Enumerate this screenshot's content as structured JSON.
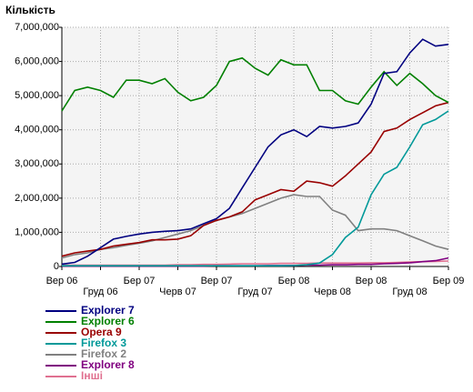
{
  "chart_data": {
    "type": "line",
    "title": "Кількість",
    "categories": [
      "Вер 06",
      null,
      null,
      "Груд 06",
      null,
      null,
      "Бер 07",
      null,
      null,
      "Черв 07",
      null,
      null,
      "Вер 07",
      null,
      null,
      "Груд 07",
      null,
      null,
      "Бер 08",
      null,
      null,
      "Черв 08",
      null,
      null,
      "Вер 08",
      null,
      null,
      "Груд 08",
      null,
      null,
      "Бер 09"
    ],
    "ylim": [
      0,
      7000000
    ],
    "yticks": [
      0,
      {
        "value": 1000000,
        "label": "1,000,000"
      },
      {
        "value": 2000000,
        "label": "2,000,000"
      },
      {
        "value": 3000000,
        "label": "3,000,000"
      },
      {
        "value": 4000000,
        "label": "4,000,000"
      },
      {
        "value": 5000000,
        "label": "5,000,000"
      },
      {
        "value": 6000000,
        "label": "6,000,000"
      },
      {
        "value": 7000000,
        "label": "7,000,000"
      }
    ],
    "grid": true,
    "series": [
      {
        "name": "Explorer 7",
        "color": "#000080",
        "values": [
          70000,
          120000,
          300000,
          550000,
          800000,
          880000,
          950000,
          1000000,
          1030000,
          1050000,
          1100000,
          1250000,
          1400000,
          1700000,
          2300000,
          2900000,
          3500000,
          3850000,
          4000000,
          3800000,
          4100000,
          4050000,
          4100000,
          4200000,
          4750000,
          5650000,
          5700000,
          6250000,
          6650000,
          6450000,
          6500000
        ]
      },
      {
        "name": "Explorer 6",
        "color": "#008000",
        "values": [
          4550000,
          5150000,
          5250000,
          5150000,
          4950000,
          5450000,
          5450000,
          5350000,
          5500000,
          5100000,
          4850000,
          4950000,
          5300000,
          6000000,
          6100000,
          5800000,
          5600000,
          6050000,
          5900000,
          5900000,
          5150000,
          5150000,
          4850000,
          4750000,
          5250000,
          5700000,
          5300000,
          5650000,
          5350000,
          5000000,
          4800000
        ]
      },
      {
        "name": "Opera 9",
        "color": "#990000",
        "values": [
          300000,
          400000,
          450000,
          500000,
          600000,
          650000,
          700000,
          780000,
          780000,
          800000,
          900000,
          1200000,
          1350000,
          1450000,
          1600000,
          1950000,
          2100000,
          2250000,
          2200000,
          2500000,
          2450000,
          2350000,
          2650000,
          3000000,
          3350000,
          3950000,
          4050000,
          4300000,
          4500000,
          4700000,
          4800000
        ]
      },
      {
        "name": "Firefox 3",
        "color": "#009999",
        "values": [
          20000,
          20000,
          20000,
          20000,
          20000,
          20000,
          20000,
          20000,
          20000,
          20000,
          20000,
          20000,
          20000,
          20000,
          20000,
          20000,
          20000,
          20000,
          30000,
          50000,
          100000,
          350000,
          850000,
          1150000,
          2100000,
          2700000,
          2900000,
          3500000,
          4150000,
          4300000,
          4550000
        ]
      },
      {
        "name": "Firefox 2",
        "color": "#808080",
        "values": [
          250000,
          350000,
          400000,
          500000,
          550000,
          620000,
          680000,
          750000,
          850000,
          950000,
          1050000,
          1200000,
          1350000,
          1450000,
          1550000,
          1700000,
          1850000,
          2000000,
          2100000,
          2050000,
          2050000,
          1650000,
          1500000,
          1050000,
          1100000,
          1100000,
          1050000,
          900000,
          750000,
          600000,
          500000
        ]
      },
      {
        "name": "Explorer 8",
        "color": "#800080",
        "values": [
          10000,
          10000,
          10000,
          10000,
          10000,
          10000,
          10000,
          10000,
          10000,
          10000,
          10000,
          10000,
          20000,
          20000,
          20000,
          20000,
          30000,
          30000,
          30000,
          40000,
          40000,
          50000,
          50000,
          60000,
          60000,
          80000,
          90000,
          110000,
          140000,
          170000,
          250000
        ]
      },
      {
        "name": "Інші",
        "color": "#e07090",
        "values": [
          40000,
          40000,
          40000,
          40000,
          40000,
          40000,
          40000,
          40000,
          40000,
          50000,
          50000,
          60000,
          60000,
          70000,
          80000,
          80000,
          80000,
          90000,
          90000,
          90000,
          100000,
          100000,
          100000,
          100000,
          110000,
          110000,
          120000,
          130000,
          140000,
          150000,
          160000
        ]
      }
    ]
  }
}
